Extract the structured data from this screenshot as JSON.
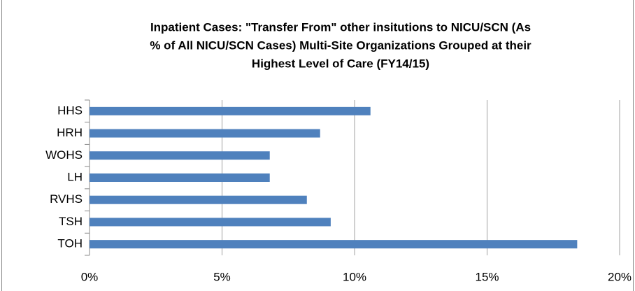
{
  "chart_data": {
    "type": "hbar",
    "title": [
      "Inpatient Cases: \"Transfer From\" other insitutions  to NICU/SCN (As",
      "% of All NICU/SCN Cases) Multi-Site Organizations Grouped at their",
      "Highest Level of Care (FY14/15)"
    ],
    "categories": [
      "HHS",
      "HRH",
      "WOHS",
      "LH",
      "RVHS",
      "TSH",
      "TOH"
    ],
    "values": [
      10.6,
      8.7,
      6.8,
      6.8,
      8.2,
      9.1,
      18.4
    ],
    "color": "#4f81bd",
    "xlim": [
      0,
      20
    ],
    "xticks": [
      {
        "value": 0,
        "label": "0%"
      },
      {
        "value": 5,
        "label": "5%"
      },
      {
        "value": 10,
        "label": "10%"
      },
      {
        "value": 15,
        "label": "15%"
      },
      {
        "value": 20,
        "label": "20%"
      }
    ],
    "grid": true
  }
}
